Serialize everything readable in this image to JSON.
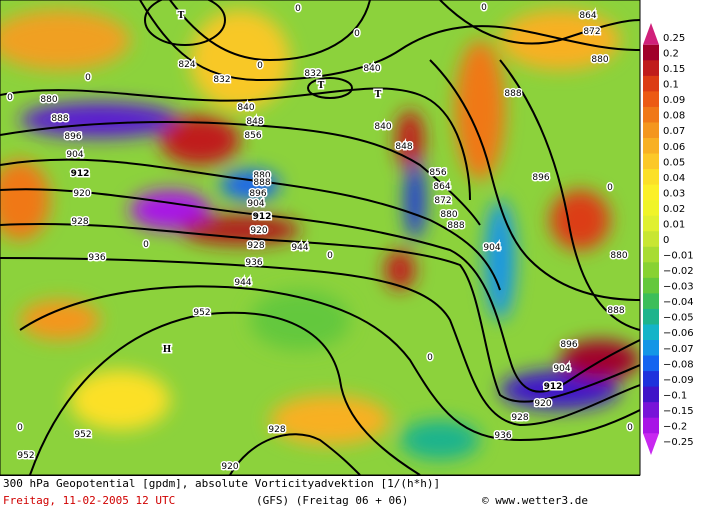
{
  "map": {
    "legend": [
      {
        "label": "0.25",
        "color": "#d0207a"
      },
      {
        "label": "0.2",
        "color": "#a0002a"
      },
      {
        "label": "0.15",
        "color": "#c01c1c"
      },
      {
        "label": "0.1",
        "color": "#dc3c14"
      },
      {
        "label": "0.09",
        "color": "#ec5a14"
      },
      {
        "label": "0.08",
        "color": "#f07818"
      },
      {
        "label": "0.07",
        "color": "#f4961e"
      },
      {
        "label": "0.06",
        "color": "#f8b024"
      },
      {
        "label": "0.05",
        "color": "#fcc828"
      },
      {
        "label": "0.04",
        "color": "#fce028"
      },
      {
        "label": "0.03",
        "color": "#fcf028"
      },
      {
        "label": "0.02",
        "color": "#f0f428"
      },
      {
        "label": "0.01",
        "color": "#e0f030"
      },
      {
        "label": "0",
        "color": "#c8e632"
      },
      {
        "label": "−0.01",
        "color": "#a8dc32"
      },
      {
        "label": "−0.02",
        "color": "#88d232"
      },
      {
        "label": "−0.03",
        "color": "#64c83c"
      },
      {
        "label": "−0.04",
        "color": "#3cbe5a"
      },
      {
        "label": "−0.05",
        "color": "#1eb48c"
      },
      {
        "label": "−0.06",
        "color": "#14b4c8"
      },
      {
        "label": "−0.07",
        "color": "#1496e6"
      },
      {
        "label": "−0.08",
        "color": "#1464f0"
      },
      {
        "label": "−0.09",
        "color": "#1e32dc"
      },
      {
        "label": "−0.1",
        "color": "#4014c8"
      },
      {
        "label": "−0.15",
        "color": "#7814d8"
      },
      {
        "label": "−0.2",
        "color": "#a814e6"
      },
      {
        "label": "−0.25",
        "color": "#c828f0"
      }
    ],
    "contour_labels": [
      "864",
      "872",
      "880",
      "824",
      "832",
      "832",
      "840",
      "840",
      "848",
      "856",
      "880",
      "888",
      "896",
      "904",
      "912",
      "920",
      "928",
      "936",
      "944",
      "952",
      "880",
      "888",
      "896",
      "904",
      "912",
      "920",
      "928",
      "936",
      "944",
      "952",
      "928",
      "920",
      "840",
      "848",
      "856",
      "864",
      "872",
      "880",
      "888",
      "888",
      "896",
      "904",
      "880",
      "888",
      "896",
      "904",
      "912",
      "920",
      "928",
      "936",
      "952",
      "0",
      "0",
      "0",
      "0",
      "0",
      "0",
      "0",
      "0",
      "0",
      "0",
      "0",
      "0"
    ],
    "pressure_centers": [
      "T",
      "T",
      "T",
      "H"
    ],
    "footer": {
      "title": "300 hPa Geopotential [gpdm], absolute Vorticityadvektion [1/(h*h)]",
      "date": "Freitag, 11-02-2005  12 UTC",
      "model": "(GFS)  (Freitag 06 + 06)",
      "copyright": "© www.wetter3.de"
    }
  }
}
